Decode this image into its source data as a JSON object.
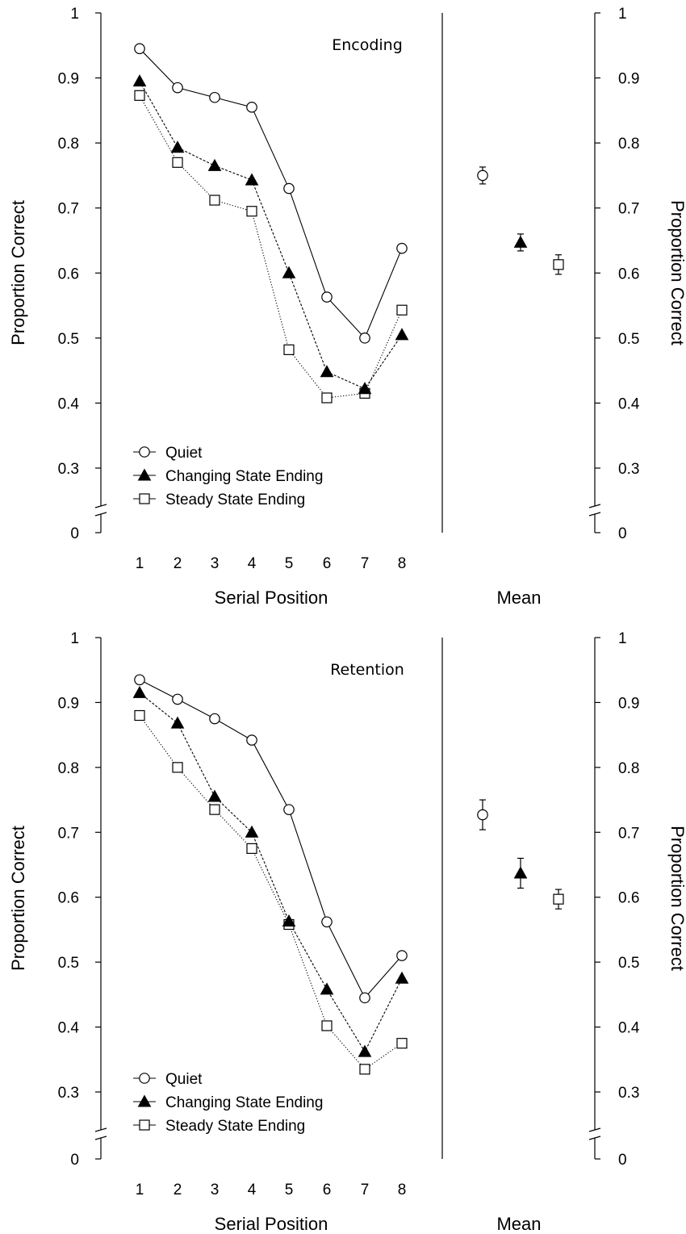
{
  "figure": {
    "right_axis_label": "Proportion Correct",
    "mean_label": "Mean"
  },
  "chart_data": [
    {
      "type": "line",
      "title": "Encoding",
      "xlabel": "Serial Position",
      "ylabel": "Proportion Correct",
      "x": [
        1,
        2,
        3,
        4,
        5,
        6,
        7,
        8
      ],
      "ylim": [
        0,
        1
      ],
      "y_axis_break": [
        0,
        0.25
      ],
      "yticks": [
        "0",
        "0.3",
        "0.4",
        "0.5",
        "0.6",
        "0.7",
        "0.8",
        "0.9",
        "1"
      ],
      "legend_position": "bottom-left",
      "series": [
        {
          "name": "Quiet",
          "marker": "open-circle",
          "line": "solid",
          "values": [
            0.945,
            0.885,
            0.87,
            0.855,
            0.73,
            0.563,
            0.5,
            0.638
          ]
        },
        {
          "name": "Changing State Ending",
          "marker": "filled-triangle",
          "line": "dashed",
          "values": [
            0.895,
            0.793,
            0.765,
            0.743,
            0.6,
            0.448,
            0.422,
            0.505
          ]
        },
        {
          "name": "Steady State Ending",
          "marker": "open-square",
          "line": "dotted",
          "values": [
            0.873,
            0.77,
            0.712,
            0.695,
            0.482,
            0.408,
            0.415,
            0.543
          ]
        }
      ],
      "means": [
        {
          "series": "Quiet",
          "value": 0.75,
          "error": 0.013
        },
        {
          "series": "Changing State Ending",
          "value": 0.647,
          "error": 0.013
        },
        {
          "series": "Steady State Ending",
          "value": 0.613,
          "error": 0.015
        }
      ]
    },
    {
      "type": "line",
      "title": "Retention",
      "xlabel": "Serial Position",
      "ylabel": "Proportion Correct",
      "x": [
        1,
        2,
        3,
        4,
        5,
        6,
        7,
        8
      ],
      "ylim": [
        0,
        1
      ],
      "y_axis_break": [
        0,
        0.25
      ],
      "yticks": [
        "0",
        "0.3",
        "0.4",
        "0.5",
        "0.6",
        "0.7",
        "0.8",
        "0.9",
        "1"
      ],
      "legend_position": "bottom-left",
      "series": [
        {
          "name": "Quiet",
          "marker": "open-circle",
          "line": "solid",
          "values": [
            0.935,
            0.905,
            0.875,
            0.842,
            0.735,
            0.562,
            0.445,
            0.51
          ]
        },
        {
          "name": "Changing State Ending",
          "marker": "filled-triangle",
          "line": "dashed",
          "values": [
            0.915,
            0.868,
            0.755,
            0.7,
            0.563,
            0.458,
            0.362,
            0.475
          ]
        },
        {
          "name": "Steady State Ending",
          "marker": "open-square",
          "line": "dotted",
          "values": [
            0.88,
            0.8,
            0.735,
            0.675,
            0.558,
            0.402,
            0.335,
            0.375
          ]
        }
      ],
      "means": [
        {
          "series": "Quiet",
          "value": 0.727,
          "error": 0.023
        },
        {
          "series": "Changing State Ending",
          "value": 0.637,
          "error": 0.023
        },
        {
          "series": "Steady State Ending",
          "value": 0.597,
          "error": 0.015
        }
      ]
    }
  ]
}
